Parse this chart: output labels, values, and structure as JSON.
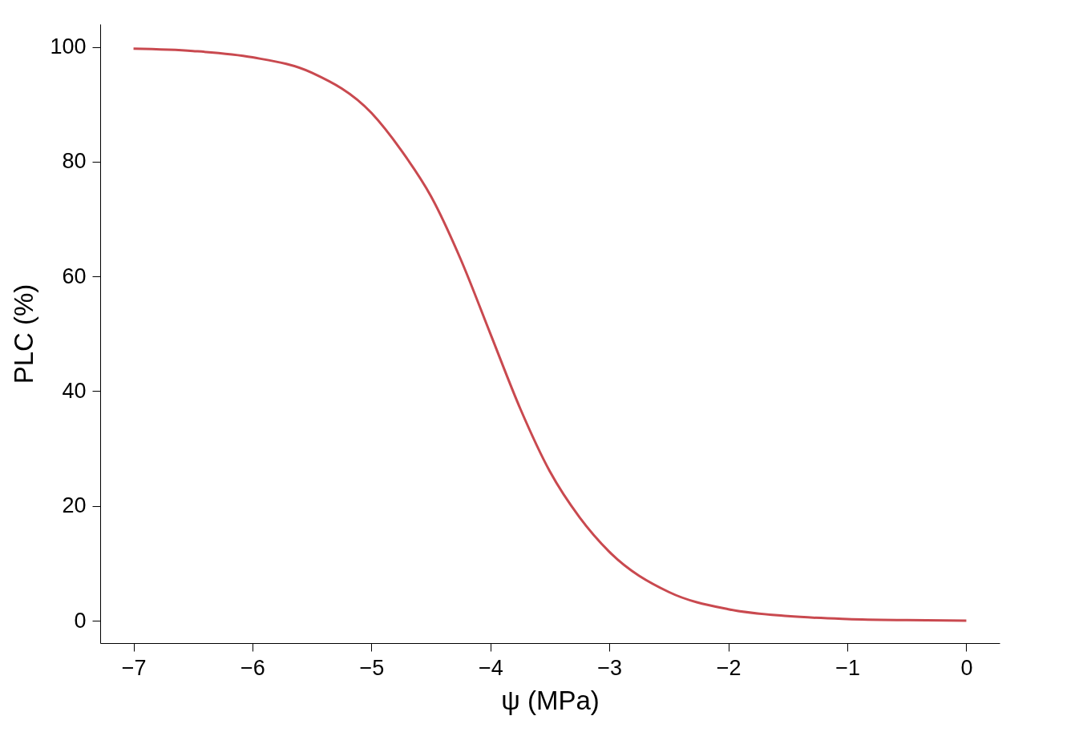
{
  "chart_data": {
    "type": "line",
    "xlabel": "ψ (MPa)",
    "ylabel": "PLC (%)",
    "x": [
      -7,
      -6.5,
      -6,
      -5.5,
      -5,
      -4.75,
      -4.5,
      -4.25,
      -4,
      -3.75,
      -3.5,
      -3.25,
      -3,
      -2.5,
      -2,
      -1.5,
      -1,
      -0.5,
      0
    ],
    "series": [
      {
        "color": "#c9494f",
        "values": [
          99.7,
          99.3,
          98.2,
          95.5,
          88.5,
          82,
          74,
          63,
          50,
          37,
          26,
          18,
          12,
          5,
          2,
          0.8,
          0.3,
          0.1,
          0
        ]
      }
    ],
    "xlim": [
      -7.28,
      0.28
    ],
    "ylim": [
      -3.9,
      104
    ],
    "xticks": [
      -7,
      -6,
      -5,
      -4,
      -3,
      -2,
      -1,
      0
    ],
    "yticks": [
      0,
      20,
      40,
      60,
      80,
      100
    ]
  }
}
